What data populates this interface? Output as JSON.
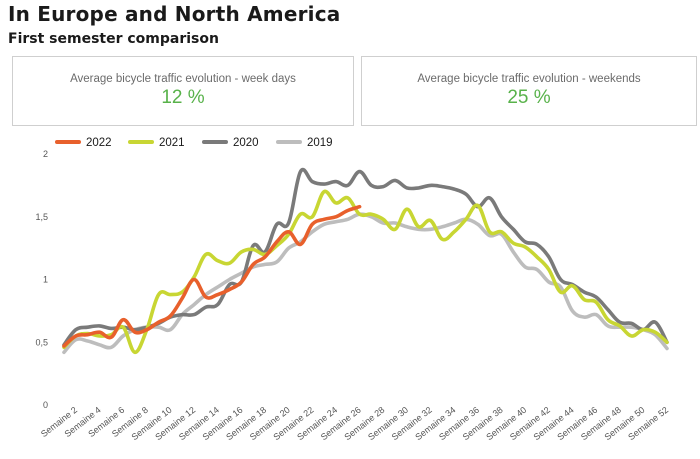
{
  "header": {
    "title": "In Europe and North America",
    "subtitle": "First semester comparison"
  },
  "kpis": [
    {
      "label": "Average bicycle traffic evolution - week days",
      "value": "12 %",
      "color": "#58b24a"
    },
    {
      "label": "Average bicycle traffic evolution - weekends",
      "value": "25 %",
      "color": "#58b24a"
    }
  ],
  "chart_data": {
    "type": "line",
    "title": "",
    "xlabel": "",
    "ylabel": "",
    "ylim": [
      0,
      2
    ],
    "yticks": [
      0,
      0.5,
      1,
      1.5,
      2
    ],
    "ytick_labels": [
      "0",
      "0,5",
      "1",
      "1,5",
      "2"
    ],
    "x": [
      1,
      2,
      3,
      4,
      5,
      6,
      7,
      8,
      9,
      10,
      11,
      12,
      13,
      14,
      15,
      16,
      17,
      18,
      19,
      20,
      21,
      22,
      23,
      24,
      25,
      26,
      27,
      28,
      29,
      30,
      31,
      32,
      33,
      34,
      35,
      36,
      37,
      38,
      39,
      40,
      41,
      42,
      43,
      44,
      45,
      46,
      47,
      48,
      49,
      50,
      51,
      52
    ],
    "xtick_labels": [
      "Semaine 2",
      "Semaine 4",
      "Semaine 6",
      "Semaine 8",
      "Semaine 10",
      "Semaine 12",
      "Semaine 14",
      "Semaine 16",
      "Semaine 18",
      "Semaine 20",
      "Semaine 22",
      "Semaine 24",
      "Semaine 26",
      "Semaine 28",
      "Semaine 30",
      "Semaine 32",
      "Semaine 34",
      "Semaine 36",
      "Semaine 38",
      "Semaine 40",
      "Semaine 42",
      "Semaine 44",
      "Semaine 46",
      "Semaine 48",
      "Semaine 50",
      "Semaine 52"
    ],
    "xtick_positions": [
      2,
      4,
      6,
      8,
      10,
      12,
      14,
      16,
      18,
      20,
      22,
      24,
      26,
      28,
      30,
      32,
      34,
      36,
      38,
      40,
      42,
      44,
      46,
      48,
      50,
      52
    ],
    "legend": "top-left",
    "grid": false,
    "series": [
      {
        "name": "2022",
        "color": "#e8602c",
        "x": [
          1,
          2,
          3,
          4,
          5,
          6,
          7,
          8,
          9,
          10,
          11,
          12,
          13,
          14,
          15,
          16,
          17,
          18,
          19,
          20,
          21,
          22,
          23,
          24,
          25,
          26
        ],
        "values": [
          0.47,
          0.55,
          0.56,
          0.58,
          0.54,
          0.68,
          0.58,
          0.6,
          0.66,
          0.71,
          0.85,
          1.0,
          0.86,
          0.88,
          0.92,
          0.98,
          1.12,
          1.18,
          1.3,
          1.38,
          1.28,
          1.44,
          1.48,
          1.5,
          1.55,
          1.58
        ]
      },
      {
        "name": "2021",
        "color": "#c8d633",
        "x": [
          1,
          2,
          3,
          4,
          5,
          6,
          7,
          8,
          9,
          10,
          11,
          12,
          13,
          14,
          15,
          16,
          17,
          18,
          19,
          20,
          21,
          22,
          23,
          24,
          25,
          26,
          27,
          28,
          29,
          30,
          31,
          32,
          33,
          34,
          35,
          36,
          37,
          38,
          39,
          40,
          41,
          42,
          43,
          44,
          45,
          46,
          47,
          48,
          49,
          50,
          51,
          52
        ],
        "values": [
          0.46,
          0.55,
          0.57,
          0.55,
          0.56,
          0.62,
          0.42,
          0.6,
          0.88,
          0.88,
          0.9,
          1.02,
          1.2,
          1.15,
          1.13,
          1.22,
          1.24,
          1.2,
          1.27,
          1.36,
          1.52,
          1.5,
          1.7,
          1.61,
          1.65,
          1.52,
          1.52,
          1.48,
          1.4,
          1.56,
          1.42,
          1.47,
          1.32,
          1.38,
          1.48,
          1.59,
          1.38,
          1.38,
          1.29,
          1.26,
          1.18,
          1.08,
          0.9,
          0.95,
          0.84,
          0.82,
          0.68,
          0.63,
          0.55,
          0.6,
          0.58,
          0.5
        ]
      },
      {
        "name": "2020",
        "color": "#7a7a7a",
        "x": [
          1,
          2,
          3,
          4,
          5,
          6,
          7,
          8,
          9,
          10,
          11,
          12,
          13,
          14,
          15,
          16,
          17,
          18,
          19,
          20,
          21,
          22,
          23,
          24,
          25,
          26,
          27,
          28,
          29,
          30,
          31,
          32,
          33,
          34,
          35,
          36,
          37,
          38,
          39,
          40,
          41,
          42,
          43,
          44,
          45,
          46,
          47,
          48,
          49,
          50,
          51,
          52
        ],
        "values": [
          0.48,
          0.6,
          0.62,
          0.63,
          0.61,
          0.62,
          0.6,
          0.62,
          0.65,
          0.7,
          0.72,
          0.72,
          0.78,
          0.8,
          0.96,
          0.98,
          1.27,
          1.22,
          1.44,
          1.45,
          1.86,
          1.78,
          1.76,
          1.78,
          1.75,
          1.86,
          1.75,
          1.74,
          1.79,
          1.73,
          1.73,
          1.75,
          1.74,
          1.72,
          1.68,
          1.58,
          1.65,
          1.5,
          1.4,
          1.3,
          1.28,
          1.18,
          1.0,
          0.96,
          0.9,
          0.86,
          0.76,
          0.66,
          0.65,
          0.6,
          0.66,
          0.5
        ]
      },
      {
        "name": "2019",
        "color": "#bdbdbd",
        "x": [
          1,
          2,
          3,
          4,
          5,
          6,
          7,
          8,
          9,
          10,
          11,
          12,
          13,
          14,
          15,
          16,
          17,
          18,
          19,
          20,
          21,
          22,
          23,
          24,
          25,
          26,
          27,
          28,
          29,
          30,
          31,
          32,
          33,
          34,
          35,
          36,
          37,
          38,
          39,
          40,
          41,
          42,
          43,
          44,
          45,
          46,
          47,
          48,
          49,
          50,
          51,
          52
        ],
        "values": [
          0.42,
          0.52,
          0.51,
          0.48,
          0.46,
          0.55,
          0.6,
          0.62,
          0.62,
          0.6,
          0.72,
          0.8,
          0.88,
          0.94,
          1.0,
          1.05,
          1.1,
          1.12,
          1.14,
          1.25,
          1.3,
          1.38,
          1.44,
          1.46,
          1.48,
          1.52,
          1.5,
          1.45,
          1.45,
          1.42,
          1.4,
          1.4,
          1.42,
          1.45,
          1.48,
          1.44,
          1.35,
          1.36,
          1.22,
          1.1,
          1.08,
          0.98,
          0.94,
          0.75,
          0.7,
          0.72,
          0.63,
          0.62,
          0.62,
          0.6,
          0.56,
          0.45
        ]
      }
    ]
  }
}
